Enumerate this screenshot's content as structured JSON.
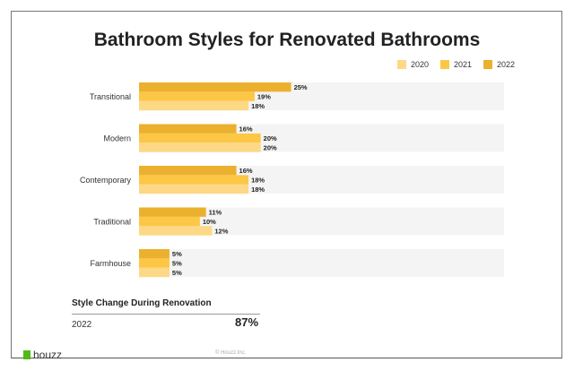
{
  "chart_data": {
    "type": "bar",
    "orientation": "horizontal",
    "title": "Bathroom Styles for Renovated Bathrooms",
    "categories": [
      "Transitional",
      "Modern",
      "Contemporary",
      "Traditional",
      "Farmhouse"
    ],
    "series": [
      {
        "name": "2022",
        "color": "#ebb12e",
        "values": [
          25,
          16,
          16,
          11,
          5
        ]
      },
      {
        "name": "2021",
        "color": "#fdc746",
        "values": [
          19,
          20,
          18,
          10,
          5
        ]
      },
      {
        "name": "2020",
        "color": "#fdd886",
        "values": [
          18,
          20,
          18,
          12,
          5
        ]
      }
    ],
    "legend": [
      "2020",
      "2021",
      "2022"
    ],
    "legend_position": "top-right",
    "xlim": [
      0,
      60
    ],
    "value_suffix": "%"
  },
  "summary": {
    "title": "Style Change During Renovation",
    "year": "2022",
    "value": "87%"
  },
  "footer": {
    "logo": "houzz",
    "copyright": "© Houzz Inc."
  }
}
